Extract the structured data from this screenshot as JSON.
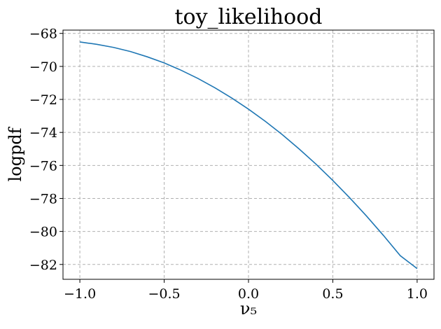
{
  "chart_data": {
    "type": "line",
    "title": "toy_likelihood",
    "xlabel": "ν₅",
    "ylabel": "logpdf",
    "xlim": [
      -1.1,
      1.1
    ],
    "ylim": [
      -82.9,
      -67.8
    ],
    "x_ticks": [
      -1.0,
      -0.5,
      0.0,
      0.5,
      1.0
    ],
    "x_tick_labels": [
      "−1.0",
      "−0.5",
      "0.0",
      "0.5",
      "1.0"
    ],
    "y_ticks": [
      -68,
      -70,
      -72,
      -74,
      -76,
      -78,
      -80,
      -82
    ],
    "y_tick_labels": [
      "−68",
      "−70",
      "−72",
      "−74",
      "−76",
      "−78",
      "−80",
      "−82"
    ],
    "grid": true,
    "series": [
      {
        "color": "#1f77b4",
        "x": [
          -1.0,
          -0.9,
          -0.8,
          -0.7,
          -0.6,
          -0.5,
          -0.4,
          -0.3,
          -0.2,
          -0.1,
          0.0,
          0.1,
          0.2,
          0.3,
          0.4,
          0.5,
          0.6,
          0.7,
          0.8,
          0.9,
          1.0
        ],
        "y": [
          -68.52,
          -68.66,
          -68.85,
          -69.1,
          -69.42,
          -69.79,
          -70.23,
          -70.73,
          -71.29,
          -71.91,
          -72.59,
          -73.33,
          -74.13,
          -75.0,
          -75.92,
          -76.91,
          -77.96,
          -79.07,
          -80.24,
          -81.47,
          -82.25
        ]
      }
    ]
  }
}
